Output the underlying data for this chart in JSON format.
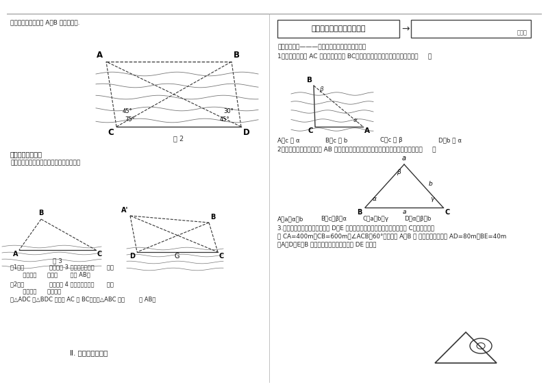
{
  "page_bg": "#ffffff",
  "top_text_left": "一平面内，求两目标 A、B 之间的距离.",
  "title_box_text": "正弦定理、余弦定理的应用",
  "arrow_text": "→",
  "right_box_label": "训练案",
  "section1_title": "一、基础巩固———把简单的事做好就叫不简单！",
  "q1_text": "1．如图，在河岸 AC 处测量河的宽度 BC，测量到下列四组数据，较近宜的是（     ）",
  "q1_optA": "A、c 与 α",
  "q1_optB": "B、c 与 b",
  "q1_optC": "C、c 与 β",
  "q1_optD": "D、b 与 α",
  "q2_text": "2．如图，为了测量隧道口 AB 的长度，给定下列四组数据，测量时最适合用的数据（     ）",
  "q2_optA": "A、a、α、b",
  "q2_optB": "B、c、β、α",
  "q2_optC": "C、a、b、γ",
  "q2_optD": "D、α、β、b",
  "q3_text1": "3.为了开凿隧道，要测量隧道上 D、E 间的距离。为此在山的一侧选取适当点 C，如下图，测",
  "q3_text2": "得 CA=400m，CB=600m，∠ACB＝60°，又测得 A、B 两 点到隧道口的距离 AD=80m，BE=40m",
  "q3_text3": "（A、D、E、B 在一条直线上），计算隧道 DE 的长。",
  "summary_title": "【规律方法总结】",
  "summary_text": "测量有关距离问题的应用题可分以下两类：",
  "fig2_label": "图 2",
  "fig3_label": "图 3",
  "section2_title": "Ⅱ. 我的知识网络图",
  "case1_line1": "（1）当              时，如图 3 所示，选取基线       测出",
  "case1_line2": "       的度数及      的长，       可求 AB。",
  "case2_line1": "（2）当              时，如图 4 所示，选取基线       测出",
  "case2_line2": "       的度数及      的长，由",
  "case3_line1": "在△ADC 和△BDC 中求出 AC 和 BC，再在△ABC 中由        求 AB。"
}
